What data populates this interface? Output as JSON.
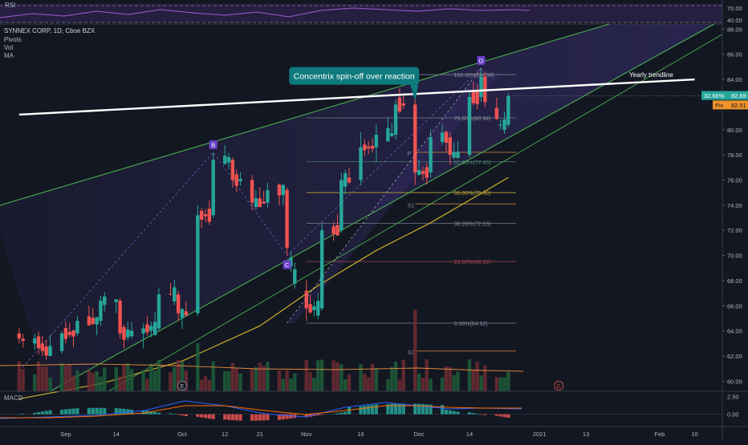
{
  "header": {
    "rsi_label": "RSI",
    "symbol_title": "SYNNEX CORP, 1D, Cboe BZX",
    "indicators": [
      "Pivots",
      "Vol",
      "MA"
    ],
    "macd_label": "MACD"
  },
  "price_badges": {
    "current": "82.69",
    "current_change": "32.66%",
    "pivot_label": "Piv",
    "pivot_value": "82.51"
  },
  "colors": {
    "background": "#131722",
    "up": "#26a69a",
    "down": "#ef5350",
    "wedge_line": "#4caf50",
    "ma": "#c9b12a",
    "fib_fill": "#2a2450",
    "callout": "#0e7a7e",
    "pattern_label": "#6a3fc9",
    "trendline": "#ffffff"
  },
  "chart_data": {
    "type": "candlestick",
    "series": [
      {
        "name": "SYNNEX CORP",
        "ohlc_points": [
          {
            "x": "2020-08-20",
            "o": 63.8,
            "h": 64.2,
            "l": 63.0,
            "c": 63.4
          },
          {
            "x": "2020-08-26",
            "o": 63.0,
            "h": 63.6,
            "l": 62.0,
            "c": 62.4
          },
          {
            "x": "2020-08-31",
            "o": 62.4,
            "h": 64.0,
            "l": 62.2,
            "c": 63.8
          },
          {
            "x": "2020-09-04",
            "o": 63.8,
            "h": 65.2,
            "l": 63.6,
            "c": 64.8
          },
          {
            "x": "2020-09-10",
            "o": 64.8,
            "h": 66.8,
            "l": 64.4,
            "c": 66.4
          },
          {
            "x": "2020-09-15",
            "o": 66.4,
            "h": 66.6,
            "l": 63.4,
            "c": 63.8
          },
          {
            "x": "2020-09-21",
            "o": 63.8,
            "h": 64.6,
            "l": 62.6,
            "c": 64.2
          },
          {
            "x": "2020-09-25",
            "o": 64.2,
            "h": 67.4,
            "l": 64.0,
            "c": 66.9
          },
          {
            "x": "2020-09-30",
            "o": 66.9,
            "h": 67.2,
            "l": 64.8,
            "c": 65.4
          },
          {
            "x": "2020-10-05",
            "o": 65.4,
            "h": 74.0,
            "l": 65.2,
            "c": 73.2
          },
          {
            "x": "2020-10-09",
            "o": 73.2,
            "h": 78.2,
            "l": 73.0,
            "c": 77.6
          },
          {
            "x": "2020-10-14",
            "o": 77.6,
            "h": 77.8,
            "l": 75.4,
            "c": 76.0
          },
          {
            "x": "2020-10-19",
            "o": 76.0,
            "h": 76.4,
            "l": 73.6,
            "c": 74.2
          },
          {
            "x": "2020-10-23",
            "o": 74.2,
            "h": 75.8,
            "l": 73.8,
            "c": 75.2
          },
          {
            "x": "2020-10-28",
            "o": 75.2,
            "h": 75.4,
            "l": 70.0,
            "c": 70.6
          },
          {
            "x": "2020-11-02",
            "o": 67.2,
            "h": 68.0,
            "l": 64.8,
            "c": 65.8
          },
          {
            "x": "2020-11-06",
            "o": 65.8,
            "h": 72.6,
            "l": 65.6,
            "c": 72.0
          },
          {
            "x": "2020-11-11",
            "o": 72.0,
            "h": 76.6,
            "l": 71.8,
            "c": 76.0
          },
          {
            "x": "2020-11-16",
            "o": 76.0,
            "h": 79.8,
            "l": 75.6,
            "c": 78.6
          },
          {
            "x": "2020-11-20",
            "o": 78.6,
            "h": 80.4,
            "l": 77.4,
            "c": 79.6
          },
          {
            "x": "2020-11-25",
            "o": 79.6,
            "h": 82.4,
            "l": 79.2,
            "c": 82.0
          },
          {
            "x": "2020-11-30",
            "o": 82.0,
            "h": 82.6,
            "l": 75.6,
            "c": 76.6
          },
          {
            "x": "2020-12-04",
            "o": 76.6,
            "h": 80.0,
            "l": 76.2,
            "c": 79.4
          },
          {
            "x": "2020-12-09",
            "o": 79.4,
            "h": 79.8,
            "l": 77.2,
            "c": 78.0
          },
          {
            "x": "2020-12-14",
            "o": 78.0,
            "h": 83.0,
            "l": 77.8,
            "c": 82.6
          },
          {
            "x": "2020-12-17",
            "o": 82.6,
            "h": 84.9,
            "l": 82.2,
            "c": 84.2
          },
          {
            "x": "2020-12-18",
            "o": 84.2,
            "h": 84.6,
            "l": 81.8,
            "c": 82.2
          },
          {
            "x": "2020-12-22",
            "o": 80.4,
            "h": 80.8,
            "l": 80.0,
            "c": 80.4
          },
          {
            "x": "2020-12-24",
            "o": 80.4,
            "h": 82.9,
            "l": 80.2,
            "c": 82.69
          }
        ]
      },
      {
        "name": "MA",
        "points": [
          {
            "x": "2020-08-20",
            "y": 58.6
          },
          {
            "x": "2020-09-10",
            "y": 59.8
          },
          {
            "x": "2020-10-01",
            "y": 61.6
          },
          {
            "x": "2020-10-21",
            "y": 64.4
          },
          {
            "x": "2020-11-05",
            "y": 67.6
          },
          {
            "x": "2020-11-20",
            "y": 70.4
          },
          {
            "x": "2020-12-04",
            "y": 72.6
          },
          {
            "x": "2020-12-24",
            "y": 76.2
          }
        ]
      },
      {
        "name": "Vol"
      },
      {
        "name": "MACD"
      }
    ],
    "x_tick_labels": [
      "Sep",
      "14",
      "Oct",
      "12",
      "21",
      "Nov",
      "16",
      "Dec",
      "14",
      "2021",
      "13",
      "Feb",
      "10"
    ],
    "y_tick_labels": [
      "60.00",
      "62.00",
      "64.00",
      "66.00",
      "68.00",
      "70.00",
      "72.00",
      "74.00",
      "76.00",
      "78.00",
      "80.00",
      "82.00",
      "84.00",
      "86.00",
      "88.00"
    ],
    "y_range": [
      59.2,
      88.4
    ],
    "rsi_tick_labels": [
      "70.00",
      "40.00"
    ],
    "macd_tick_labels": [
      "2.50",
      "0.00"
    ],
    "rsi_range": [
      30,
      80
    ],
    "macd_range": [
      -1.5,
      3.0
    ],
    "annotations": [
      {
        "kind": "callout",
        "text": "Concentrix spin-off over reaction",
        "x": "2020-11-30",
        "y": 82.3
      },
      {
        "kind": "pattern_point",
        "text": "B",
        "x": "2020-10-09",
        "y": 78.2
      },
      {
        "kind": "pattern_point",
        "text": "C",
        "x": "2020-10-28",
        "y": 70.0
      },
      {
        "kind": "pattern_point",
        "text": "D",
        "x": "2020-12-17",
        "y": 84.9
      },
      {
        "kind": "trendline_label",
        "text": "Yearly trendline",
        "x": "2021-01-20",
        "y": 84.0
      }
    ],
    "trendline": {
      "name": "Yearly trendline",
      "from": {
        "x": "2020-08-20",
        "y": 81.2
      },
      "to": {
        "x": "2021-02-10",
        "y": 84.0
      }
    },
    "fib_levels": [
      {
        "label": "100.00%(84.38)",
        "value": 84.38
      },
      {
        "label": "78.60%(80.94)",
        "value": 80.94
      },
      {
        "label": "61.80%(77.45)",
        "value": 77.45
      },
      {
        "label": "50.00%(75.00)",
        "value": 75.0
      },
      {
        "label": "38.20%(72.55)",
        "value": 72.55
      },
      {
        "label": "23.60%(69.52)",
        "value": 69.52
      },
      {
        "label": "0.00%(64.62)",
        "value": 64.62
      }
    ],
    "pivot_levels": [
      {
        "label": "P",
        "value": 78.2
      },
      {
        "label": "S1",
        "value": 74.1
      },
      {
        "label": "S2",
        "value": 62.4
      }
    ],
    "event_markers": [
      {
        "text": "E",
        "x": "2020-10-01"
      },
      {
        "text": "E",
        "x": "2021-01-06"
      }
    ]
  }
}
